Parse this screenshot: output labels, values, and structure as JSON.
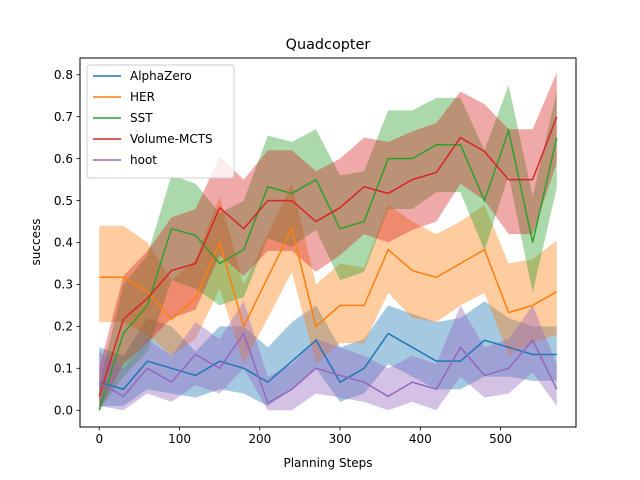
{
  "chart_data": {
    "type": "line",
    "title": "Quadcopter",
    "xlabel": "Planning Steps",
    "ylabel": "success",
    "xlim": [
      -24,
      594
    ],
    "ylim": [
      -0.04,
      0.84
    ],
    "xticks": [
      0,
      100,
      200,
      300,
      400,
      500
    ],
    "yticks": [
      0.0,
      0.1,
      0.2,
      0.3,
      0.4,
      0.5,
      0.6,
      0.7,
      0.8
    ],
    "legend": "top-left",
    "grid": false,
    "x": [
      0,
      30,
      60,
      90,
      120,
      150,
      180,
      210,
      240,
      270,
      300,
      330,
      360,
      390,
      420,
      450,
      480,
      510,
      540,
      570
    ],
    "series": [
      {
        "name": "AlphaZero",
        "color": "#1f77b4",
        "values": [
          0.067,
          0.05,
          0.117,
          0.1,
          0.083,
          0.117,
          0.1,
          0.067,
          0.117,
          0.167,
          0.067,
          0.1,
          0.183,
          0.15,
          0.117,
          0.117,
          0.167,
          0.15,
          0.133,
          0.133
        ],
        "lower": [
          0.01,
          0.01,
          0.05,
          0.04,
          0.03,
          0.05,
          0.04,
          0.01,
          0.05,
          0.1,
          0.02,
          0.04,
          0.11,
          0.08,
          0.05,
          0.05,
          0.08,
          0.08,
          0.07,
          0.07
        ],
        "upper": [
          0.15,
          0.13,
          0.22,
          0.2,
          0.14,
          0.2,
          0.2,
          0.15,
          0.21,
          0.25,
          0.15,
          0.17,
          0.25,
          0.23,
          0.21,
          0.22,
          0.26,
          0.22,
          0.2,
          0.2
        ]
      },
      {
        "name": "HER",
        "color": "#ff7f0e",
        "values": [
          0.317,
          0.317,
          0.283,
          0.217,
          0.267,
          0.4,
          0.2,
          0.317,
          0.433,
          0.2,
          0.25,
          0.25,
          0.383,
          0.333,
          0.317,
          0.35,
          0.383,
          0.233,
          0.25,
          0.283
        ],
        "lower": [
          0.21,
          0.21,
          0.18,
          0.13,
          0.17,
          0.29,
          0.11,
          0.22,
          0.33,
          0.11,
          0.16,
          0.16,
          0.28,
          0.22,
          0.21,
          0.25,
          0.28,
          0.13,
          0.16,
          0.18
        ],
        "upper": [
          0.44,
          0.44,
          0.4,
          0.31,
          0.36,
          0.51,
          0.3,
          0.42,
          0.54,
          0.3,
          0.35,
          0.34,
          0.49,
          0.45,
          0.42,
          0.45,
          0.49,
          0.35,
          0.36,
          0.405
        ]
      },
      {
        "name": "SST",
        "color": "#2ca02c",
        "values": [
          0.0,
          0.183,
          0.25,
          0.433,
          0.417,
          0.35,
          0.383,
          0.533,
          0.517,
          0.55,
          0.433,
          0.45,
          0.6,
          0.6,
          0.633,
          0.633,
          0.5,
          0.667,
          0.4,
          0.65
        ],
        "lower": [
          0.0,
          0.08,
          0.14,
          0.31,
          0.29,
          0.25,
          0.27,
          0.41,
          0.39,
          0.43,
          0.31,
          0.33,
          0.48,
          0.48,
          0.52,
          0.52,
          0.38,
          0.56,
          0.28,
          0.53
        ],
        "upper": [
          0.06,
          0.3,
          0.37,
          0.56,
          0.54,
          0.47,
          0.5,
          0.655,
          0.64,
          0.67,
          0.56,
          0.57,
          0.715,
          0.715,
          0.745,
          0.745,
          0.62,
          0.775,
          0.51,
          0.76
        ]
      },
      {
        "name": "Volume-MCTS",
        "color": "#d62728",
        "values": [
          0.033,
          0.217,
          0.267,
          0.333,
          0.35,
          0.483,
          0.433,
          0.5,
          0.5,
          0.45,
          0.483,
          0.533,
          0.517,
          0.55,
          0.567,
          0.65,
          0.617,
          0.55,
          0.55,
          0.7
        ],
        "lower": [
          0.0,
          0.11,
          0.16,
          0.22,
          0.24,
          0.37,
          0.32,
          0.38,
          0.38,
          0.33,
          0.37,
          0.42,
          0.4,
          0.43,
          0.45,
          0.54,
          0.5,
          0.42,
          0.42,
          0.59
        ],
        "upper": [
          0.1,
          0.32,
          0.38,
          0.46,
          0.48,
          0.605,
          0.55,
          0.62,
          0.62,
          0.57,
          0.6,
          0.65,
          0.64,
          0.665,
          0.685,
          0.76,
          0.73,
          0.67,
          0.67,
          0.805
        ]
      },
      {
        "name": "hoot",
        "color": "#9467bd",
        "values": [
          0.067,
          0.033,
          0.1,
          0.067,
          0.133,
          0.1,
          0.183,
          0.017,
          0.05,
          0.1,
          0.083,
          0.067,
          0.033,
          0.067,
          0.05,
          0.15,
          0.083,
          0.1,
          0.167,
          0.05
        ],
        "lower": [
          0.01,
          0.0,
          0.04,
          0.02,
          0.06,
          0.04,
          0.1,
          0.0,
          0.0,
          0.04,
          0.03,
          0.02,
          0.0,
          0.02,
          0.0,
          0.08,
          0.03,
          0.04,
          0.09,
          0.01
        ],
        "upper": [
          0.14,
          0.1,
          0.17,
          0.13,
          0.21,
          0.17,
          0.26,
          0.08,
          0.11,
          0.17,
          0.15,
          0.13,
          0.1,
          0.13,
          0.11,
          0.25,
          0.15,
          0.17,
          0.25,
          0.11
        ]
      }
    ]
  }
}
